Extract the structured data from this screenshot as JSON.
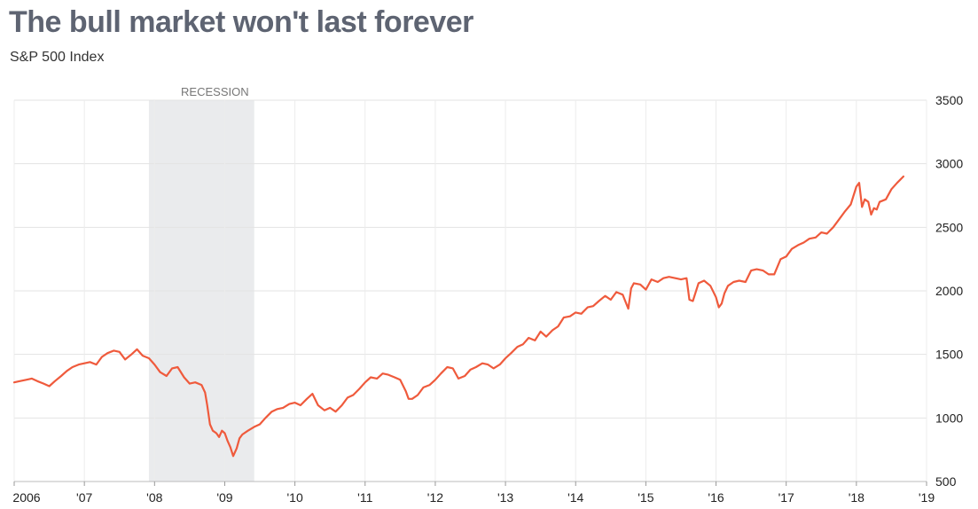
{
  "chart_data": {
    "type": "line",
    "title": "The bull market won't last forever",
    "subtitle": "S&P 500 Index",
    "xlabel": "",
    "ylabel": "",
    "xlim": [
      2006.0,
      2019.0
    ],
    "ylim": [
      500,
      3500
    ],
    "y_axis_side": "right",
    "grid": true,
    "x_tick_values": [
      2006,
      2007,
      2008,
      2009,
      2010,
      2011,
      2012,
      2013,
      2014,
      2015,
      2016,
      2017,
      2018,
      2019
    ],
    "x_tick_labels": [
      "2006",
      "'07",
      "'08",
      "'09",
      "'10",
      "'11",
      "'12",
      "'13",
      "'14",
      "'15",
      "'16",
      "'17",
      "'18",
      "'19"
    ],
    "y_ticks": [
      500,
      1000,
      1500,
      2000,
      2500,
      3000,
      3500
    ],
    "shaded_regions": [
      {
        "label": "RECESSION",
        "x_start": 2007.92,
        "x_end": 2009.42,
        "color": "#eaebed"
      }
    ],
    "series": [
      {
        "color": "#ef5a3c",
        "x": [
          2006.0,
          2006.08,
          2006.17,
          2006.25,
          2006.33,
          2006.42,
          2006.5,
          2006.58,
          2006.67,
          2006.75,
          2006.83,
          2006.92,
          2007.0,
          2007.08,
          2007.17,
          2007.25,
          2007.33,
          2007.42,
          2007.5,
          2007.58,
          2007.67,
          2007.75,
          2007.83,
          2007.92,
          2008.0,
          2008.08,
          2008.17,
          2008.25,
          2008.33,
          2008.42,
          2008.5,
          2008.58,
          2008.67,
          2008.72,
          2008.75,
          2008.79,
          2008.83,
          2008.88,
          2008.92,
          2008.96,
          2009.0,
          2009.04,
          2009.08,
          2009.12,
          2009.17,
          2009.21,
          2009.25,
          2009.33,
          2009.42,
          2009.5,
          2009.58,
          2009.67,
          2009.75,
          2009.83,
          2009.92,
          2010.0,
          2010.08,
          2010.17,
          2010.25,
          2010.33,
          2010.42,
          2010.5,
          2010.58,
          2010.67,
          2010.75,
          2010.83,
          2010.92,
          2011.0,
          2011.08,
          2011.17,
          2011.25,
          2011.33,
          2011.42,
          2011.5,
          2011.58,
          2011.62,
          2011.67,
          2011.75,
          2011.83,
          2011.92,
          2012.0,
          2012.08,
          2012.17,
          2012.25,
          2012.33,
          2012.42,
          2012.5,
          2012.58,
          2012.67,
          2012.75,
          2012.83,
          2012.92,
          2013.0,
          2013.08,
          2013.17,
          2013.25,
          2013.33,
          2013.42,
          2013.5,
          2013.58,
          2013.67,
          2013.75,
          2013.83,
          2013.92,
          2014.0,
          2014.08,
          2014.17,
          2014.25,
          2014.33,
          2014.42,
          2014.5,
          2014.58,
          2014.67,
          2014.75,
          2014.79,
          2014.83,
          2014.92,
          2015.0,
          2015.08,
          2015.17,
          2015.25,
          2015.33,
          2015.42,
          2015.5,
          2015.58,
          2015.62,
          2015.67,
          2015.75,
          2015.83,
          2015.92,
          2016.0,
          2016.04,
          2016.08,
          2016.12,
          2016.17,
          2016.25,
          2016.33,
          2016.42,
          2016.5,
          2016.58,
          2016.67,
          2016.75,
          2016.83,
          2016.92,
          2017.0,
          2017.08,
          2017.17,
          2017.25,
          2017.33,
          2017.42,
          2017.5,
          2017.58,
          2017.67,
          2017.75,
          2017.83,
          2017.92,
          2018.0,
          2018.04,
          2018.08,
          2018.12,
          2018.17,
          2018.21,
          2018.25,
          2018.29,
          2018.33,
          2018.42,
          2018.5,
          2018.58,
          2018.67
        ],
        "y": [
          1280,
          1290,
          1300,
          1310,
          1290,
          1270,
          1250,
          1290,
          1330,
          1370,
          1400,
          1420,
          1430,
          1440,
          1420,
          1480,
          1510,
          1530,
          1520,
          1460,
          1500,
          1540,
          1490,
          1470,
          1420,
          1360,
          1330,
          1390,
          1400,
          1320,
          1270,
          1280,
          1260,
          1200,
          1100,
          950,
          900,
          880,
          850,
          900,
          880,
          820,
          770,
          700,
          760,
          840,
          870,
          900,
          930,
          950,
          1000,
          1050,
          1070,
          1080,
          1110,
          1120,
          1100,
          1150,
          1190,
          1100,
          1060,
          1080,
          1050,
          1100,
          1160,
          1180,
          1230,
          1280,
          1320,
          1310,
          1350,
          1340,
          1320,
          1300,
          1210,
          1150,
          1150,
          1180,
          1240,
          1260,
          1300,
          1350,
          1400,
          1390,
          1310,
          1330,
          1380,
          1400,
          1430,
          1420,
          1390,
          1420,
          1470,
          1510,
          1560,
          1580,
          1630,
          1610,
          1680,
          1640,
          1690,
          1720,
          1790,
          1800,
          1830,
          1820,
          1870,
          1880,
          1920,
          1960,
          1930,
          1990,
          1970,
          1860,
          2020,
          2060,
          2050,
          2010,
          2090,
          2070,
          2100,
          2110,
          2100,
          2090,
          2100,
          1930,
          1920,
          2060,
          2080,
          2040,
          1950,
          1870,
          1900,
          1980,
          2040,
          2070,
          2080,
          2070,
          2160,
          2170,
          2160,
          2130,
          2130,
          2250,
          2270,
          2330,
          2360,
          2380,
          2410,
          2420,
          2460,
          2450,
          2500,
          2560,
          2620,
          2680,
          2820,
          2850,
          2660,
          2720,
          2700,
          2600,
          2650,
          2640,
          2700,
          2720,
          2800,
          2850,
          2900
        ]
      }
    ]
  }
}
